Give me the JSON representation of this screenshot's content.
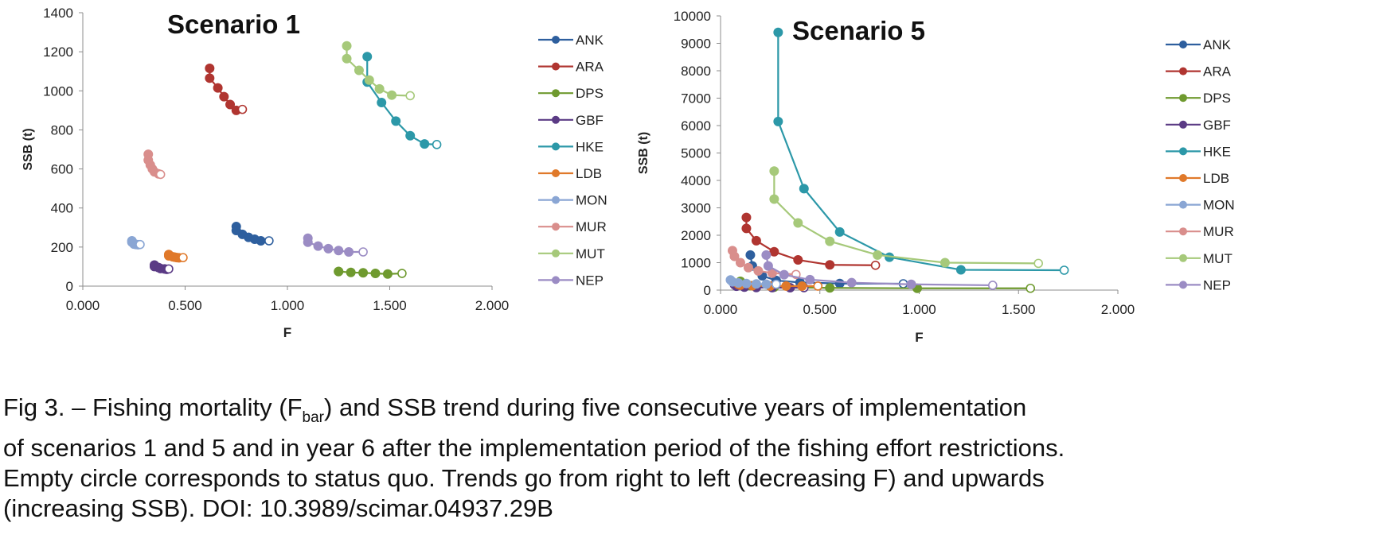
{
  "chart_data": [
    {
      "type": "line",
      "title": "Scenario 1",
      "xlabel": "F",
      "ylabel": "SSB (t)",
      "xlim": [
        0,
        2
      ],
      "ylim": [
        0,
        1400
      ],
      "x_ticks": [
        "0.000",
        "0.500",
        "1.000",
        "1.500",
        "2.000"
      ],
      "y_ticks": [
        "0",
        "200",
        "400",
        "600",
        "800",
        "1000",
        "1200",
        "1400"
      ],
      "grid": false,
      "legend_position": "right",
      "series": [
        {
          "name": "ANK",
          "color": "#2e5f9e",
          "points": [
            [
              0.75,
              305
            ],
            [
              0.75,
              285
            ],
            [
              0.78,
              265
            ],
            [
              0.81,
              250
            ],
            [
              0.84,
              240
            ],
            [
              0.87,
              232
            ],
            [
              0.91,
              232
            ]
          ]
        },
        {
          "name": "ARA",
          "color": "#b03530",
          "points": [
            [
              0.62,
              1115
            ],
            [
              0.62,
              1065
            ],
            [
              0.66,
              1015
            ],
            [
              0.69,
              970
            ],
            [
              0.72,
              930
            ],
            [
              0.75,
              900
            ],
            [
              0.78,
              905
            ]
          ]
        },
        {
          "name": "DPS",
          "color": "#6f9a2f",
          "points": [
            [
              1.25,
              75
            ],
            [
              1.25,
              75
            ],
            [
              1.31,
              70
            ],
            [
              1.37,
              68
            ],
            [
              1.43,
              65
            ],
            [
              1.49,
              62
            ],
            [
              1.56,
              65
            ]
          ]
        },
        {
          "name": "GBF",
          "color": "#5b3b85",
          "points": [
            [
              0.35,
              108
            ],
            [
              0.35,
              100
            ],
            [
              0.37,
              95
            ],
            [
              0.38,
              90
            ],
            [
              0.4,
              88
            ],
            [
              0.41,
              86
            ],
            [
              0.42,
              88
            ]
          ]
        },
        {
          "name": "HKE",
          "color": "#2c98a8",
          "points": [
            [
              1.39,
              1175
            ],
            [
              1.39,
              1045
            ],
            [
              1.46,
              940
            ],
            [
              1.53,
              845
            ],
            [
              1.6,
              770
            ],
            [
              1.67,
              728
            ],
            [
              1.73,
              725
            ]
          ]
        },
        {
          "name": "LDB",
          "color": "#e0792a",
          "points": [
            [
              0.42,
              162
            ],
            [
              0.42,
              155
            ],
            [
              0.44,
              150
            ],
            [
              0.45,
              148
            ],
            [
              0.46,
              146
            ],
            [
              0.47,
              145
            ],
            [
              0.49,
              146
            ]
          ]
        },
        {
          "name": "MON",
          "color": "#8aa6d4",
          "points": [
            [
              0.24,
              232
            ],
            [
              0.24,
              225
            ],
            [
              0.25,
              218
            ],
            [
              0.25,
              215
            ],
            [
              0.26,
              213
            ],
            [
              0.27,
              212
            ],
            [
              0.28,
              213
            ]
          ]
        },
        {
          "name": "MUR",
          "color": "#d98e8c",
          "points": [
            [
              0.32,
              675
            ],
            [
              0.32,
              645
            ],
            [
              0.33,
              620
            ],
            [
              0.34,
              600
            ],
            [
              0.35,
              585
            ],
            [
              0.37,
              575
            ],
            [
              0.38,
              572
            ]
          ]
        },
        {
          "name": "MUT",
          "color": "#a6c97a",
          "points": [
            [
              1.29,
              1230
            ],
            [
              1.29,
              1165
            ],
            [
              1.35,
              1105
            ],
            [
              1.4,
              1055
            ],
            [
              1.45,
              1010
            ],
            [
              1.51,
              978
            ],
            [
              1.6,
              975
            ]
          ]
        },
        {
          "name": "NEP",
          "color": "#9b8cc4",
          "points": [
            [
              1.1,
              245
            ],
            [
              1.1,
              225
            ],
            [
              1.15,
              205
            ],
            [
              1.2,
              192
            ],
            [
              1.25,
              182
            ],
            [
              1.3,
              175
            ],
            [
              1.37,
              175
            ]
          ]
        }
      ]
    },
    {
      "type": "line",
      "title": "Scenario 5",
      "xlabel": "F",
      "ylabel": "SSB (t)",
      "xlim": [
        0,
        2
      ],
      "ylim": [
        0,
        10000
      ],
      "x_ticks": [
        "0.000",
        "0.500",
        "1.000",
        "1.500",
        "2.000"
      ],
      "y_ticks": [
        "0",
        "1000",
        "2000",
        "3000",
        "4000",
        "5000",
        "6000",
        "7000",
        "8000",
        "9000",
        "10000"
      ],
      "grid": false,
      "legend_position": "right",
      "series": [
        {
          "name": "ANK",
          "color": "#2e5f9e",
          "points": [
            [
              0.15,
              1280
            ],
            [
              0.16,
              880
            ],
            [
              0.21,
              520
            ],
            [
              0.28,
              350
            ],
            [
              0.4,
              280
            ],
            [
              0.6,
              240
            ],
            [
              0.92,
              232
            ]
          ]
        },
        {
          "name": "ARA",
          "color": "#b03530",
          "points": [
            [
              0.13,
              2650
            ],
            [
              0.13,
              2250
            ],
            [
              0.18,
              1800
            ],
            [
              0.27,
              1400
            ],
            [
              0.39,
              1100
            ],
            [
              0.55,
              920
            ],
            [
              0.78,
              905
            ]
          ]
        },
        {
          "name": "DPS",
          "color": "#6f9a2f",
          "points": [
            [
              0.1,
              320
            ],
            [
              0.1,
              220
            ],
            [
              0.15,
              160
            ],
            [
              0.27,
              110
            ],
            [
              0.55,
              80
            ],
            [
              0.99,
              66
            ],
            [
              1.56,
              65
            ]
          ]
        },
        {
          "name": "GBF",
          "color": "#5b3b85",
          "points": [
            [
              0.07,
              200
            ],
            [
              0.08,
              140
            ],
            [
              0.12,
              110
            ],
            [
              0.18,
              95
            ],
            [
              0.26,
              90
            ],
            [
              0.35,
              88
            ],
            [
              0.42,
              88
            ]
          ]
        },
        {
          "name": "HKE",
          "color": "#2c98a8",
          "points": [
            [
              0.29,
              9400
            ],
            [
              0.29,
              6150
            ],
            [
              0.42,
              3700
            ],
            [
              0.6,
              2120
            ],
            [
              0.85,
              1200
            ],
            [
              1.21,
              740
            ],
            [
              1.73,
              725
            ]
          ]
        },
        {
          "name": "LDB",
          "color": "#e0792a",
          "points": [
            [
              0.09,
              210
            ],
            [
              0.1,
              180
            ],
            [
              0.16,
              160
            ],
            [
              0.25,
              150
            ],
            [
              0.33,
              148
            ],
            [
              0.41,
              146
            ],
            [
              0.49,
              146
            ]
          ]
        },
        {
          "name": "MON",
          "color": "#8aa6d4",
          "points": [
            [
              0.05,
              370
            ],
            [
              0.06,
              300
            ],
            [
              0.09,
              260
            ],
            [
              0.13,
              240
            ],
            [
              0.18,
              225
            ],
            [
              0.23,
              215
            ],
            [
              0.28,
              213
            ]
          ]
        },
        {
          "name": "MUR",
          "color": "#d98e8c",
          "points": [
            [
              0.06,
              1440
            ],
            [
              0.07,
              1230
            ],
            [
              0.1,
              1000
            ],
            [
              0.14,
              820
            ],
            [
              0.19,
              700
            ],
            [
              0.26,
              620
            ],
            [
              0.38,
              572
            ]
          ]
        },
        {
          "name": "MUT",
          "color": "#a6c97a",
          "points": [
            [
              0.27,
              4340
            ],
            [
              0.27,
              3320
            ],
            [
              0.39,
              2450
            ],
            [
              0.55,
              1780
            ],
            [
              0.79,
              1280
            ],
            [
              1.13,
              1000
            ],
            [
              1.6,
              975
            ]
          ]
        },
        {
          "name": "NEP",
          "color": "#9b8cc4",
          "points": [
            [
              0.23,
              1280
            ],
            [
              0.24,
              880
            ],
            [
              0.32,
              560
            ],
            [
              0.45,
              380
            ],
            [
              0.66,
              270
            ],
            [
              0.96,
              210
            ],
            [
              1.37,
              175
            ]
          ]
        }
      ]
    }
  ],
  "caption": {
    "prefix": "Fig 3. – Fishing mortality (F",
    "subscript": "bar",
    "line1_rest": ") and SSB trend during five consecutive years of implementation",
    "line2": "of scenarios 1 and 5 and in year 6 after the implementation period of the fishing effort restrictions.",
    "line3": "Empty circle corresponds to status quo. Trends go from right to left (decreasing F) and upwards",
    "line4": "(increasing SSB). DOI: 10.3989/scimar.04937.29B"
  }
}
